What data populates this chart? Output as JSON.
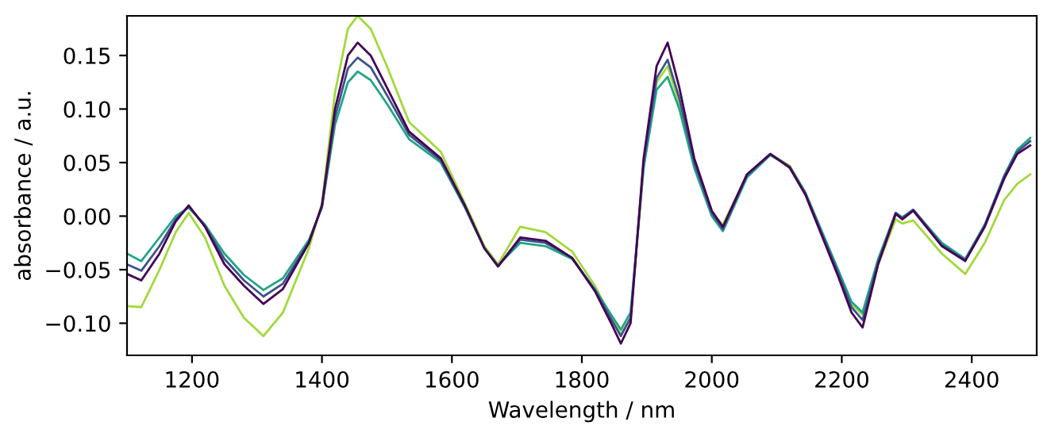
{
  "chart_data": {
    "type": "line",
    "xlabel": "Wavelength / nm",
    "ylabel": "absorbance / a.u.",
    "x": [
      1100,
      1122,
      1150,
      1175,
      1195,
      1220,
      1250,
      1280,
      1310,
      1340,
      1380,
      1400,
      1420,
      1440,
      1455,
      1475,
      1500,
      1534,
      1583,
      1620,
      1650,
      1671,
      1705,
      1744,
      1785,
      1820,
      1845,
      1860,
      1875,
      1895,
      1915,
      1932,
      1950,
      1973,
      2000,
      2017,
      2054,
      2090,
      2120,
      2144,
      2193,
      2215,
      2232,
      2256,
      2283,
      2293,
      2310,
      2354,
      2390,
      2420,
      2450,
      2470,
      2490
    ],
    "series": [
      {
        "color": "#a0da39",
        "values": [
          -0.084,
          -0.085,
          -0.05,
          -0.015,
          0.003,
          -0.02,
          -0.065,
          -0.095,
          -0.112,
          -0.09,
          -0.03,
          0.012,
          0.115,
          0.175,
          0.187,
          0.175,
          0.14,
          0.088,
          0.06,
          0.012,
          -0.028,
          -0.045,
          -0.01,
          -0.015,
          -0.033,
          -0.065,
          -0.095,
          -0.11,
          -0.095,
          0.045,
          0.125,
          0.14,
          0.105,
          0.048,
          0.002,
          -0.008,
          0.038,
          0.058,
          0.047,
          0.022,
          -0.05,
          -0.082,
          -0.092,
          -0.045,
          -0.003,
          -0.007,
          -0.004,
          -0.035,
          -0.054,
          -0.025,
          0.015,
          0.03,
          0.039
        ]
      },
      {
        "color": "#21a585",
        "values": [
          -0.035,
          -0.042,
          -0.02,
          0.0,
          0.008,
          -0.008,
          -0.035,
          -0.055,
          -0.069,
          -0.058,
          -0.022,
          0.008,
          0.085,
          0.125,
          0.135,
          0.127,
          0.105,
          0.072,
          0.05,
          0.008,
          -0.03,
          -0.046,
          -0.025,
          -0.028,
          -0.04,
          -0.068,
          -0.092,
          -0.106,
          -0.09,
          0.045,
          0.118,
          0.13,
          0.1,
          0.045,
          0.0,
          -0.014,
          0.036,
          0.057,
          0.046,
          0.022,
          -0.048,
          -0.08,
          -0.09,
          -0.04,
          0.003,
          -0.001,
          0.006,
          -0.025,
          -0.04,
          -0.008,
          0.038,
          0.062,
          0.073
        ]
      },
      {
        "color": "#3b528b",
        "values": [
          -0.045,
          -0.051,
          -0.028,
          -0.003,
          0.009,
          -0.009,
          -0.04,
          -0.06,
          -0.075,
          -0.063,
          -0.024,
          0.009,
          0.092,
          0.138,
          0.148,
          0.139,
          0.113,
          0.076,
          0.052,
          0.009,
          -0.03,
          -0.047,
          -0.022,
          -0.025,
          -0.039,
          -0.069,
          -0.096,
          -0.112,
          -0.095,
          0.05,
          0.129,
          0.146,
          0.11,
          0.05,
          0.003,
          -0.012,
          0.038,
          0.058,
          0.046,
          0.021,
          -0.051,
          -0.085,
          -0.097,
          -0.043,
          0.003,
          -0.002,
          0.006,
          -0.027,
          -0.041,
          -0.009,
          0.037,
          0.06,
          0.07
        ]
      },
      {
        "color": "#440154",
        "values": [
          -0.054,
          -0.06,
          -0.035,
          -0.005,
          0.01,
          -0.01,
          -0.045,
          -0.065,
          -0.082,
          -0.068,
          -0.025,
          0.01,
          0.1,
          0.15,
          0.162,
          0.15,
          0.12,
          0.079,
          0.054,
          0.01,
          -0.03,
          -0.047,
          -0.02,
          -0.023,
          -0.039,
          -0.07,
          -0.1,
          -0.119,
          -0.1,
          0.054,
          0.14,
          0.162,
          0.12,
          0.054,
          0.005,
          -0.01,
          0.039,
          0.058,
          0.045,
          0.02,
          -0.054,
          -0.09,
          -0.104,
          -0.045,
          0.002,
          -0.003,
          0.005,
          -0.028,
          -0.042,
          -0.01,
          0.035,
          0.058,
          0.066
        ]
      }
    ],
    "xlim": [
      1100,
      2500
    ],
    "ylim": [
      -0.13,
      0.187
    ],
    "xticks": [
      1200,
      1400,
      1600,
      1800,
      2000,
      2200,
      2400
    ],
    "yticks": [
      {
        "value": -0.1,
        "label": "−0.10"
      },
      {
        "value": -0.05,
        "label": "−0.05"
      },
      {
        "value": 0,
        "label": "0.00"
      },
      {
        "value": 0.05,
        "label": "0.05"
      },
      {
        "value": 0.1,
        "label": "0.10"
      },
      {
        "value": 0.15,
        "label": "0.15"
      }
    ],
    "grid": false,
    "legend": false,
    "marker": "none",
    "line_style": "solid"
  }
}
